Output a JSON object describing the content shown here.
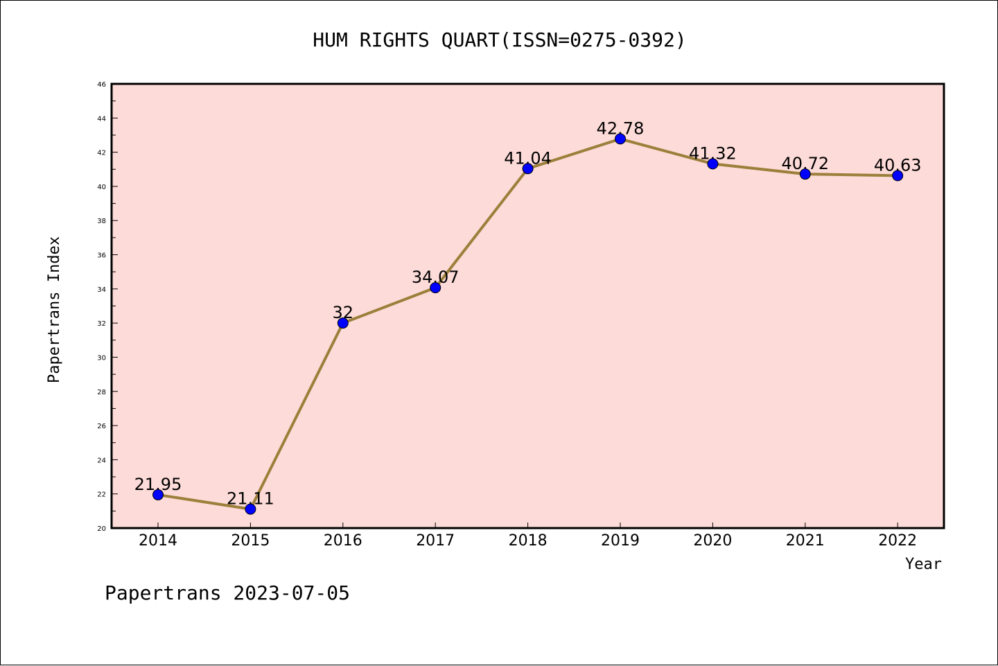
{
  "chart_data": {
    "type": "line",
    "title": "HUM RIGHTS QUART(ISSN=0275-0392)",
    "xlabel": "Year",
    "ylabel": "Papertrans Index",
    "footer": "Papertrans 2023-07-05",
    "categories": [
      "2014",
      "2015",
      "2016",
      "2017",
      "2018",
      "2019",
      "2020",
      "2021",
      "2022"
    ],
    "series": [
      {
        "values": [
          21.95,
          21.11,
          32,
          34.07,
          41.04,
          42.78,
          41.32,
          40.72,
          40.63
        ],
        "labels": [
          "21.95",
          "21.11",
          "32",
          "34.07",
          "41.04",
          "42.78",
          "41.32",
          "40.72",
          "40.63"
        ],
        "line_color": "#9b7f3a",
        "marker_color": "#0000ff"
      }
    ],
    "ylim": [
      20,
      46
    ],
    "yticks": [
      "20",
      "22",
      "24",
      "26",
      "28",
      "30",
      "32",
      "34",
      "36",
      "38",
      "40",
      "42",
      "44",
      "46"
    ],
    "plot_background": "#fddbd8",
    "grid": false,
    "legend": "none"
  }
}
